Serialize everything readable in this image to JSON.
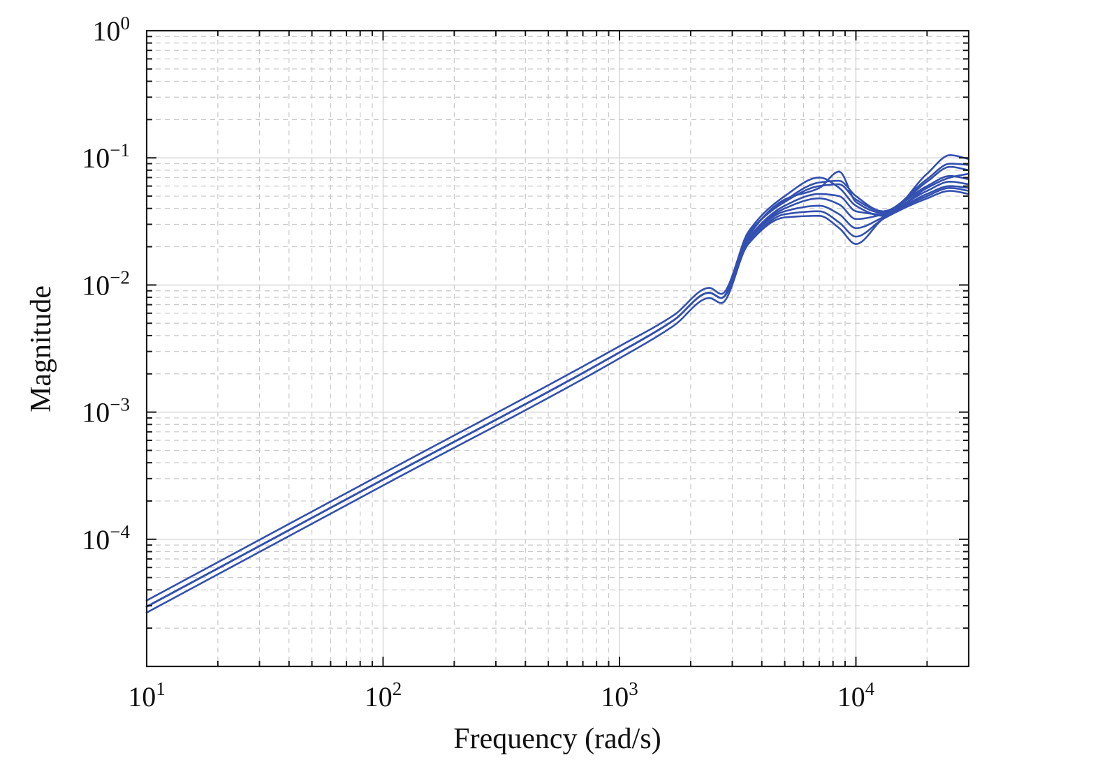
{
  "chart_data": {
    "type": "line",
    "title": "",
    "xlabel": "Frequency (rad/s)",
    "ylabel": "Magnitude",
    "xscale": "log",
    "yscale": "log",
    "xlim": [
      10,
      30000
    ],
    "ylim": [
      1e-05,
      1
    ],
    "grid": "major and minor",
    "line_color": "#3350b0",
    "xticks": [
      {
        "value": 10,
        "base": "10",
        "exp": "1"
      },
      {
        "value": 100,
        "base": "10",
        "exp": "2"
      },
      {
        "value": 1000,
        "base": "10",
        "exp": "3"
      },
      {
        "value": 10000,
        "base": "10",
        "exp": "4"
      }
    ],
    "yticks": [
      {
        "value": 0.0001,
        "base": "10",
        "exp": "−4"
      },
      {
        "value": 0.001,
        "base": "10",
        "exp": "−3"
      },
      {
        "value": 0.01,
        "base": "10",
        "exp": "−2"
      },
      {
        "value": 0.1,
        "base": "10",
        "exp": "−1"
      },
      {
        "value": 1,
        "base": "10",
        "exp": "0"
      }
    ],
    "series": [
      {
        "x": [
          10,
          100,
          1000,
          1700,
          2400,
          2700,
          3500,
          5000,
          7000,
          8500,
          10000,
          13000,
          20000,
          25000,
          30000
        ],
        "y": [
          3.3e-05,
          0.00033,
          0.0033,
          0.0058,
          0.0095,
          0.0085,
          0.025,
          0.045,
          0.06,
          0.062,
          0.047,
          0.038,
          0.06,
          0.072,
          0.068
        ]
      },
      {
        "x": [
          10,
          100,
          1000,
          1700,
          2400,
          2700,
          3500,
          5000,
          7000,
          8500,
          10000,
          13000,
          20000,
          25000,
          30000
        ],
        "y": [
          2.95e-05,
          0.000295,
          0.00295,
          0.0053,
          0.0087,
          0.0079,
          0.023,
          0.04,
          0.048,
          0.043,
          0.033,
          0.036,
          0.055,
          0.065,
          0.062
        ]
      },
      {
        "x": [
          10,
          100,
          1000,
          1700,
          2400,
          2700,
          3500,
          5000,
          7000,
          8500,
          10000,
          13000,
          20000,
          25000,
          30000
        ],
        "y": [
          2.65e-05,
          0.000265,
          0.00265,
          0.0048,
          0.0079,
          0.0072,
          0.021,
          0.034,
          0.035,
          0.028,
          0.021,
          0.033,
          0.05,
          0.058,
          0.055
        ]
      },
      {
        "x": [
          10,
          100,
          1000,
          1700,
          2400,
          2700,
          3500,
          5000,
          7000,
          8500,
          10000,
          13000,
          20000,
          25000,
          30000
        ],
        "y": [
          2.95e-05,
          0.000295,
          0.00295,
          0.0053,
          0.0087,
          0.0079,
          0.026,
          0.05,
          0.07,
          0.058,
          0.042,
          0.035,
          0.075,
          0.105,
          0.098
        ]
      },
      {
        "x": [
          10,
          100,
          1000,
          1700,
          2400,
          2700,
          3500,
          5000,
          7000,
          8500,
          10000,
          13000,
          20000,
          25000,
          30000
        ],
        "y": [
          2.95e-05,
          0.000295,
          0.00295,
          0.0053,
          0.0087,
          0.0079,
          0.024,
          0.047,
          0.058,
          0.078,
          0.045,
          0.037,
          0.065,
          0.085,
          0.08
        ]
      },
      {
        "x": [
          10,
          100,
          1000,
          1700,
          2400,
          2700,
          3500,
          5000,
          7000,
          8500,
          10000,
          13000,
          20000,
          25000,
          30000
        ],
        "y": [
          2.95e-05,
          0.000295,
          0.00295,
          0.0053,
          0.0087,
          0.0079,
          0.023,
          0.042,
          0.052,
          0.05,
          0.038,
          0.036,
          0.058,
          0.07,
          0.075
        ]
      },
      {
        "x": [
          10,
          100,
          1000,
          1700,
          2400,
          2700,
          3500,
          5000,
          7000,
          8500,
          10000,
          13000,
          20000,
          25000,
          30000
        ],
        "y": [
          2.95e-05,
          0.000295,
          0.00295,
          0.0053,
          0.0087,
          0.0079,
          0.022,
          0.038,
          0.042,
          0.036,
          0.028,
          0.034,
          0.052,
          0.06,
          0.058
        ]
      },
      {
        "x": [
          10,
          100,
          1000,
          1700,
          2400,
          2700,
          3500,
          5000,
          7000,
          8500,
          10000,
          13000,
          20000,
          25000,
          30000
        ],
        "y": [
          2.95e-05,
          0.000295,
          0.00295,
          0.0053,
          0.0087,
          0.0079,
          0.021,
          0.036,
          0.038,
          0.031,
          0.024,
          0.033,
          0.048,
          0.055,
          0.052
        ]
      },
      {
        "x": [
          10,
          100,
          1000,
          1700,
          2400,
          2700,
          3500,
          5000,
          7000,
          8500,
          10000,
          13000,
          20000,
          25000,
          30000
        ],
        "y": [
          2.95e-05,
          0.000295,
          0.00295,
          0.0053,
          0.0087,
          0.0079,
          0.025,
          0.046,
          0.064,
          0.066,
          0.05,
          0.038,
          0.068,
          0.09,
          0.088
        ]
      }
    ]
  }
}
